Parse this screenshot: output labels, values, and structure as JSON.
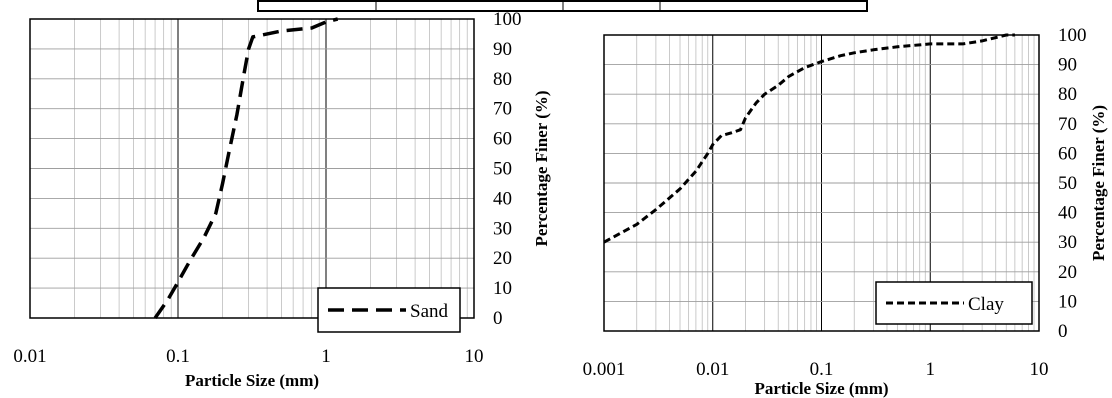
{
  "chart_data": [
    {
      "type": "line",
      "xscale": "log",
      "xlim": [
        0.01,
        10
      ],
      "ylim": [
        0,
        100
      ],
      "x_ticks": [
        "0.01",
        "0.1",
        "1",
        "10"
      ],
      "y_ticks": [
        "0",
        "10",
        "20",
        "30",
        "40",
        "50",
        "60",
        "70",
        "80",
        "90",
        "100"
      ],
      "xlabel": "Particle Size (mm)",
      "ylabel": "Percentage Finer (%)",
      "grid": true,
      "legend": "bottom-right",
      "series": [
        {
          "name": "Sand",
          "dash": "long-dash",
          "color": "#000000",
          "x": [
            0.07,
            0.085,
            0.1,
            0.12,
            0.15,
            0.18,
            0.2,
            0.22,
            0.25,
            0.28,
            0.3,
            0.32,
            0.5,
            0.8,
            1.0,
            1.2
          ],
          "y": [
            0,
            6,
            12,
            19,
            27,
            35,
            45,
            55,
            68,
            82,
            90,
            94,
            96,
            97,
            99,
            100
          ]
        }
      ]
    },
    {
      "type": "line",
      "xscale": "log",
      "xlim": [
        0.001,
        10
      ],
      "ylim": [
        0,
        100
      ],
      "x_ticks": [
        "0.001",
        "0.01",
        "0.1",
        "1",
        "10"
      ],
      "y_ticks": [
        "0",
        "10",
        "20",
        "30",
        "40",
        "50",
        "60",
        "70",
        "80",
        "90",
        "100"
      ],
      "xlabel": "Particle Size (mm)",
      "ylabel": "Percentage Finer (%)",
      "grid": true,
      "legend": "bottom-right",
      "series": [
        {
          "name": "Clay",
          "dash": "short-dash",
          "color": "#000000",
          "x": [
            0.001,
            0.002,
            0.003,
            0.005,
            0.007,
            0.009,
            0.01,
            0.012,
            0.015,
            0.018,
            0.02,
            0.025,
            0.03,
            0.04,
            0.05,
            0.07,
            0.1,
            0.15,
            0.2,
            0.3,
            0.5,
            1.0,
            2.0,
            3.0,
            5.0,
            6.0
          ],
          "y": [
            30,
            36,
            41,
            48,
            54,
            60,
            63,
            66,
            67,
            68,
            72,
            77,
            80,
            83,
            86,
            89,
            91,
            93,
            94,
            95,
            96,
            97,
            97,
            98,
            100,
            100
          ]
        }
      ]
    }
  ]
}
